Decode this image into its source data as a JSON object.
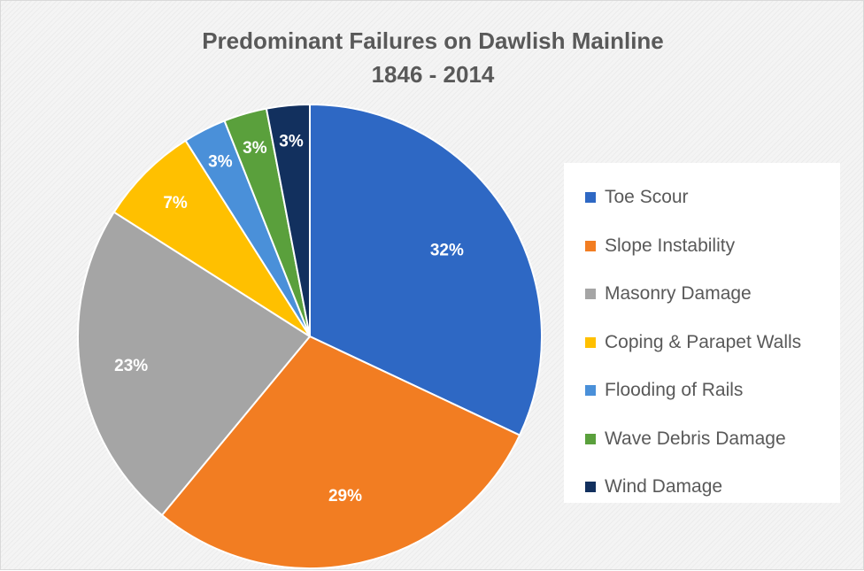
{
  "chart_data": {
    "type": "pie",
    "title": "Predominant Failures on Dawlish Mainline",
    "subtitle": "1846 - 2014",
    "slices": [
      {
        "label": "Toe Scour",
        "value": 32,
        "display": "32%",
        "color": "#2e68c4"
      },
      {
        "label": "Slope Instability",
        "value": 29,
        "display": "29%",
        "color": "#f27d22"
      },
      {
        "label": "Masonry Damage",
        "value": 23,
        "display": "23%",
        "color": "#a5a5a5"
      },
      {
        "label": "Coping & Parapet Walls",
        "value": 7,
        "display": "7%",
        "color": "#ffc000"
      },
      {
        "label": "Flooding of Rails",
        "value": 3,
        "display": "3%",
        "color": "#4a90d9"
      },
      {
        "label": "Wave Debris Damage",
        "value": 3,
        "display": "3%",
        "color": "#5aa03c"
      },
      {
        "label": "Wind Damage",
        "value": 3,
        "display": "3%",
        "color": "#12305e"
      }
    ],
    "legend_position": "right",
    "label_color": "#ffffff"
  }
}
